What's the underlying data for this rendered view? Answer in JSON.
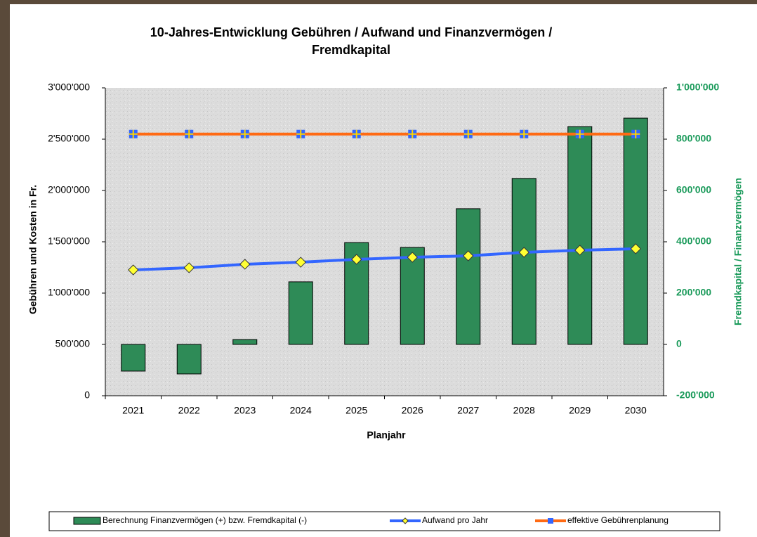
{
  "chart_data": {
    "type": "bar-line",
    "title": "10-Jahres-Entwicklung Gebühren / Aufwand und Finanzvermögen /",
    "title_line2": "Fremdkapital",
    "x_label": "Planjahr",
    "y_label": "Gebühren und Kosten in Fr.",
    "y2_label": "Fremdkapital / Finanzvermögen",
    "categories": [
      "2021",
      "2022",
      "2023",
      "2024",
      "2025",
      "2026",
      "2027",
      "2028",
      "2029",
      "2030"
    ],
    "ylim": [
      0,
      3000000
    ],
    "yticks": [
      0,
      {
        "value": 500000,
        "label": "500'000"
      },
      {
        "value": 1000000,
        "label": "1'000'000"
      },
      {
        "value": 1500000,
        "label": "1'500'000"
      },
      {
        "value": 2000000,
        "label": "2'000'000"
      },
      {
        "value": 2500000,
        "label": "2'500'000"
      },
      {
        "value": 3000000,
        "label": "3'000'000"
      }
    ],
    "y2lim": [
      -200000,
      1000000
    ],
    "y2ticks": [
      {
        "value": -200000,
        "label": "-200'000"
      },
      0,
      {
        "value": 200000,
        "label": "200'000"
      },
      {
        "value": 400000,
        "label": "400'000"
      },
      {
        "value": 600000,
        "label": "600'000"
      },
      {
        "value": 800000,
        "label": "800'000"
      },
      {
        "value": 1000000,
        "label": "1'000'000"
      }
    ],
    "y2_color": "#1a9a5a",
    "series": [
      {
        "name": "Berechnung Finanzvermögen (+) bzw. Fremdkapital (-)",
        "type": "bar",
        "axis": "y2",
        "color": "#2e8b57",
        "values": [
          -104000,
          -115000,
          19000,
          244000,
          397000,
          378000,
          529000,
          647000,
          849000,
          882000
        ]
      },
      {
        "name": "Aufwand pro Jahr",
        "type": "line",
        "color": "#3366ff",
        "marker": "diamond",
        "marker_color": "#ffff33",
        "values": [
          1226000,
          1247000,
          1281000,
          1301000,
          1329000,
          1349000,
          1363000,
          1397000,
          1418000,
          1432000
        ]
      },
      {
        "name": "effektive Gebührenplanung",
        "type": "line",
        "color": "#ff6a13",
        "marker": "square",
        "marker_color": "#3366ff",
        "values": [
          2550000,
          2550000,
          2550000,
          2550000,
          2550000,
          2550000,
          2550000,
          2550000,
          2550000,
          2550000
        ]
      }
    ]
  }
}
